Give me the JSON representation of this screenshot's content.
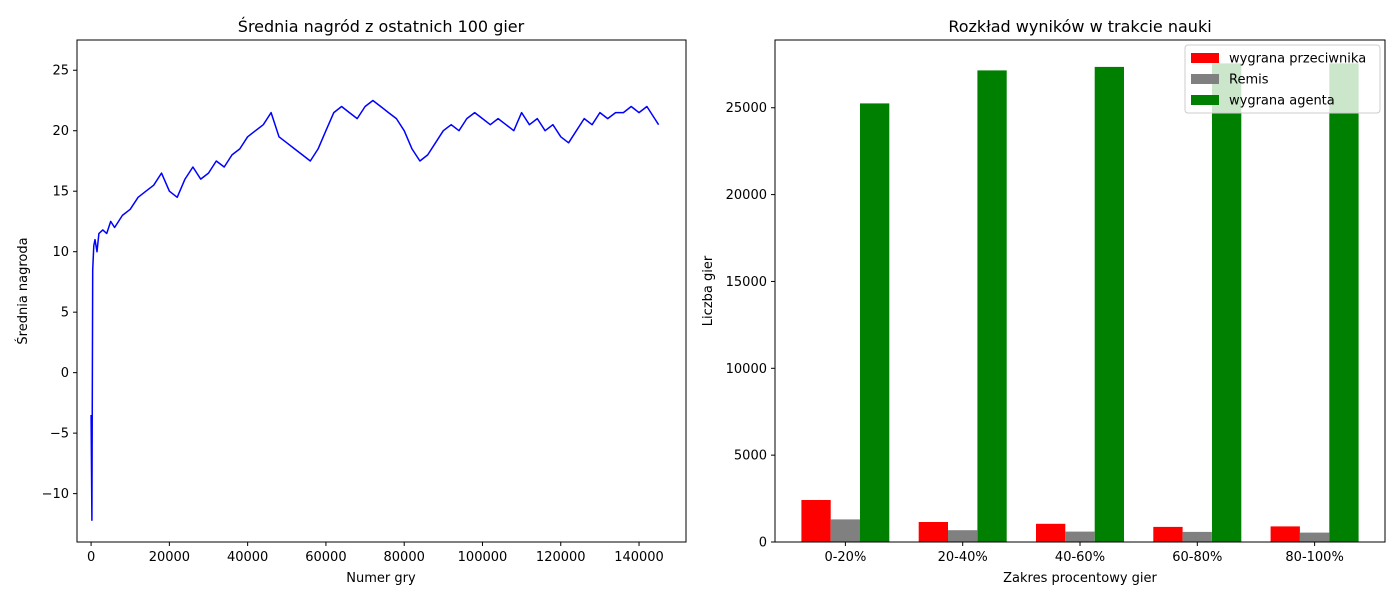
{
  "chart_data": [
    {
      "type": "line",
      "title": "Średnia nagród z ostatnich 100 gier",
      "xlabel": "Numer gry",
      "ylabel": "Średnia nagroda",
      "xlim": [
        -3600,
        152000
      ],
      "ylim": [
        -14.0,
        27.5
      ],
      "xticks": [
        0,
        20000,
        40000,
        60000,
        80000,
        100000,
        120000,
        140000
      ],
      "xtick_labels": [
        "0",
        "20000",
        "40000",
        "60000",
        "80000",
        "100000",
        "120000",
        "140000"
      ],
      "yticks": [
        -10,
        -5,
        0,
        5,
        10,
        15,
        20,
        25
      ],
      "ytick_labels": [
        "−10",
        "−5",
        "0",
        "5",
        "10",
        "15",
        "20",
        "25"
      ],
      "grid": false,
      "line_color": "#0000ff",
      "series": [
        {
          "x": [
            0,
            200,
            400,
            700,
            1000,
            1500,
            2000,
            3000,
            4000,
            5000,
            6000,
            8000,
            10000,
            12000,
            14000,
            16000,
            18000,
            20000,
            22000,
            24000,
            26000,
            28000,
            30000,
            32000,
            34000,
            36000,
            38000,
            40000,
            42000,
            44000,
            46000,
            48000,
            50000,
            52000,
            54000,
            56000,
            58000,
            60000,
            62000,
            64000,
            66000,
            68000,
            70000,
            72000,
            74000,
            76000,
            78000,
            80000,
            82000,
            84000,
            86000,
            88000,
            90000,
            92000,
            94000,
            96000,
            98000,
            100000,
            102000,
            104000,
            106000,
            108000,
            110000,
            112000,
            114000,
            116000,
            118000,
            120000,
            122000,
            124000,
            126000,
            128000,
            130000,
            132000,
            134000,
            136000,
            138000,
            140000,
            142000,
            144000,
            145000
          ],
          "y": [
            -3.5,
            -12.2,
            8.5,
            10.5,
            11.0,
            10.0,
            11.5,
            11.8,
            11.5,
            12.5,
            12.0,
            13.0,
            13.5,
            14.5,
            15.0,
            15.5,
            16.5,
            15.0,
            14.5,
            16.0,
            17.0,
            16.0,
            16.5,
            17.5,
            17.0,
            18.0,
            18.5,
            19.5,
            20.0,
            20.5,
            21.5,
            19.5,
            19.0,
            18.5,
            18.0,
            17.5,
            18.5,
            20.0,
            21.5,
            22.0,
            21.5,
            21.0,
            22.0,
            22.5,
            22.0,
            21.5,
            21.0,
            20.0,
            18.5,
            17.5,
            18.0,
            19.0,
            20.0,
            20.5,
            20.0,
            21.0,
            21.5,
            21.0,
            20.5,
            21.0,
            20.5,
            20.0,
            21.5,
            20.5,
            21.0,
            20.0,
            20.5,
            19.5,
            19.0,
            20.0,
            21.0,
            20.5,
            21.5,
            21.0,
            21.5,
            21.5,
            22.0,
            21.5,
            22.0,
            21.0,
            20.5
          ]
        }
      ]
    },
    {
      "type": "bar",
      "title": "Rozkład wyników w trakcie nauki",
      "xlabel": "Zakres procentowy gier",
      "ylabel": "Liczba gier",
      "categories": [
        "0-20%",
        "20-40%",
        "40-60%",
        "60-80%",
        "80-100%"
      ],
      "ylim": [
        0,
        28900
      ],
      "yticks": [
        0,
        5000,
        10000,
        15000,
        20000,
        25000
      ],
      "ytick_labels": [
        "0",
        "5000",
        "10000",
        "15000",
        "20000",
        "25000"
      ],
      "grid": false,
      "legend_position": "top-right",
      "series": [
        {
          "name": "wygrana przeciwnika",
          "color": "#ff0000",
          "values": [
            2420,
            1150,
            1050,
            870,
            900
          ]
        },
        {
          "name": "Remis",
          "color": "#808080",
          "values": [
            1300,
            680,
            600,
            580,
            540
          ]
        },
        {
          "name": "wygrana agenta",
          "color": "#008000",
          "values": [
            25250,
            27150,
            27350,
            27550,
            27550
          ]
        }
      ]
    }
  ]
}
